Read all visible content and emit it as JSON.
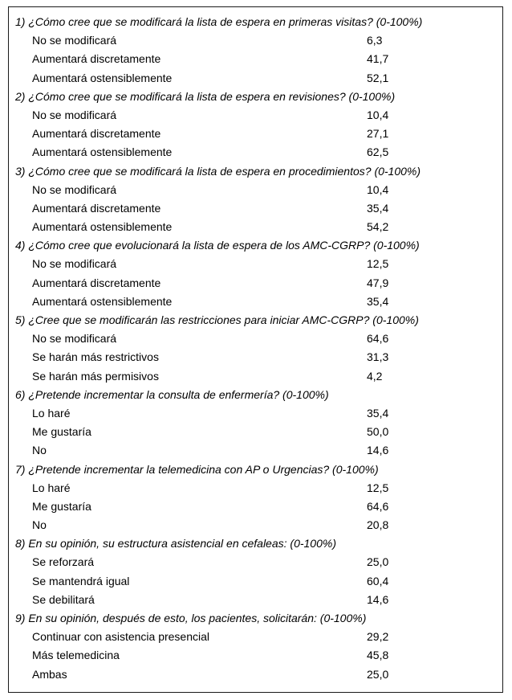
{
  "table": {
    "questions": [
      {
        "number": "1)",
        "text": "¿Cómo cree que se modificará la lista de espera en primeras visitas? (0-100%)",
        "options": [
          {
            "label": "No se modificará",
            "value": "6,3"
          },
          {
            "label": "Aumentará discretamente",
            "value": "41,7"
          },
          {
            "label": "Aumentará ostensiblemente",
            "value": "52,1"
          }
        ]
      },
      {
        "number": "2)",
        "text": "¿Cómo cree que se modificará la lista de espera en revisiones? (0-100%)",
        "options": [
          {
            "label": "No se modificará",
            "value": "10,4"
          },
          {
            "label": "Aumentará discretamente",
            "value": "27,1"
          },
          {
            "label": "Aumentará ostensiblemente",
            "value": "62,5"
          }
        ]
      },
      {
        "number": "3)",
        "text": "¿Cómo cree que se modificará la lista de espera en procedimientos? (0-100%)",
        "options": [
          {
            "label": "No se modificará",
            "value": "10,4"
          },
          {
            "label": "Aumentará discretamente",
            "value": "35,4"
          },
          {
            "label": "Aumentará ostensiblemente",
            "value": "54,2"
          }
        ]
      },
      {
        "number": "4)",
        "text": "¿Cómo cree que evolucionará la lista de espera de los AMC-CGRP? (0-100%)",
        "options": [
          {
            "label": "No se modificará",
            "value": "12,5"
          },
          {
            "label": "Aumentará discretamente",
            "value": "47,9"
          },
          {
            "label": "Aumentará ostensiblemente",
            "value": "35,4"
          }
        ]
      },
      {
        "number": "5)",
        "text": "¿Cree que se modificarán las restricciones para iniciar AMC-CGRP? (0-100%)",
        "options": [
          {
            "label": "No se modificará",
            "value": "64,6"
          },
          {
            "label": "Se harán más restrictivos",
            "value": "31,3"
          },
          {
            "label": "Se harán más permisivos",
            "value": "4,2"
          }
        ]
      },
      {
        "number": "6)",
        "text": "¿Pretende incrementar la consulta de enfermería? (0-100%)",
        "options": [
          {
            "label": "Lo haré",
            "value": "35,4"
          },
          {
            "label": "Me gustaría",
            "value": "50,0"
          },
          {
            "label": "No",
            "value": "14,6"
          }
        ]
      },
      {
        "number": "7)",
        "text": "¿Pretende incrementar la telemedicina con AP o Urgencias? (0-100%)",
        "options": [
          {
            "label": "Lo haré",
            "value": "12,5"
          },
          {
            "label": "Me gustaría",
            "value": "64,6"
          },
          {
            "label": "No",
            "value": "20,8"
          }
        ]
      },
      {
        "number": "8)",
        "text": "En su opinión, su estructura asistencial en cefaleas: (0-100%)",
        "options": [
          {
            "label": "Se reforzará",
            "value": "25,0"
          },
          {
            "label": "Se mantendrá igual",
            "value": "60,4"
          },
          {
            "label": "Se debilitará",
            "value": "14,6"
          }
        ]
      },
      {
        "number": "9)",
        "text": "En su opinión, después de esto, los pacientes, solicitarán: (0-100%)",
        "options": [
          {
            "label": "Continuar con asistencia presencial",
            "value": "29,2"
          },
          {
            "label": "Más telemedicina",
            "value": "45,8"
          },
          {
            "label": "Ambas",
            "value": "25,0"
          }
        ]
      }
    ]
  }
}
